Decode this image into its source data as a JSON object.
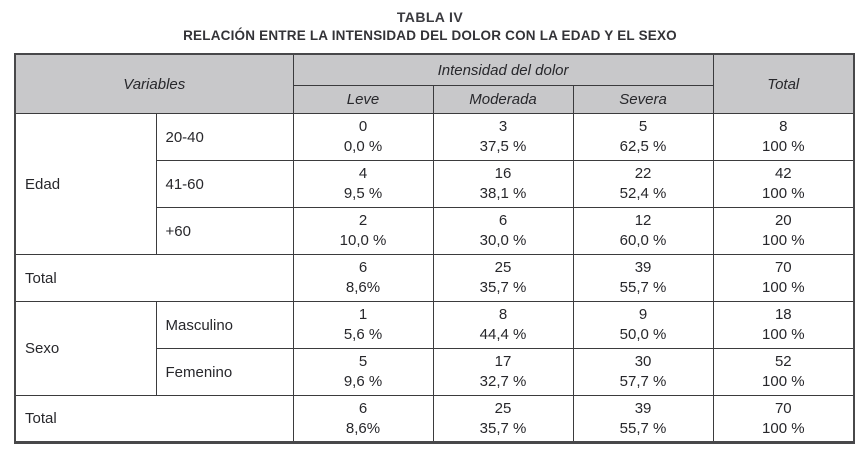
{
  "page": {
    "title": "TABLA IV",
    "subtitle": "RELACIÓN ENTRE LA INTENSIDAD DEL DOLOR CON LA EDAD Y EL SEXO"
  },
  "colors": {
    "header_bg": "#c8c8ca",
    "border": "#3b3b3d",
    "text": "#27272b"
  },
  "header": {
    "variables": "Variables",
    "intensity_group": "Intensidad del dolor",
    "leve": "Leve",
    "moderada": "Moderada",
    "severa": "Severa",
    "total": "Total"
  },
  "body": {
    "edad_label": "Edad",
    "sexo_label": "Sexo",
    "rows": [
      {
        "category": "20-40",
        "leve": {
          "n": "0",
          "pct": "0,0 %"
        },
        "moderada": {
          "n": "3",
          "pct": "37,5 %"
        },
        "severa": {
          "n": "5",
          "pct": "62,5 %"
        },
        "total": {
          "n": "8",
          "pct": "100 %"
        }
      },
      {
        "category": "41-60",
        "leve": {
          "n": "4",
          "pct": "9,5 %"
        },
        "moderada": {
          "n": "16",
          "pct": "38,1 %"
        },
        "severa": {
          "n": "22",
          "pct": "52,4 %"
        },
        "total": {
          "n": "42",
          "pct": "100 %"
        }
      },
      {
        "category": "+60",
        "leve": {
          "n": "2",
          "pct": "10,0 %"
        },
        "moderada": {
          "n": "6",
          "pct": "30,0 %"
        },
        "severa": {
          "n": "12",
          "pct": "60,0 %"
        },
        "total": {
          "n": "20",
          "pct": "100 %"
        }
      }
    ],
    "edad_total": {
      "label": "Total",
      "leve": {
        "n": "6",
        "pct": "8,6%"
      },
      "moderada": {
        "n": "25",
        "pct": "35,7 %"
      },
      "severa": {
        "n": "39",
        "pct": "55,7 %"
      },
      "total": {
        "n": "70",
        "pct": "100 %"
      }
    },
    "sexo_rows": [
      {
        "category": "Masculino",
        "leve": {
          "n": "1",
          "pct": "5,6 %"
        },
        "moderada": {
          "n": "8",
          "pct": "44,4 %"
        },
        "severa": {
          "n": "9",
          "pct": "50,0 %"
        },
        "total": {
          "n": "18",
          "pct": "100 %"
        }
      },
      {
        "category": "Femenino",
        "leve": {
          "n": "5",
          "pct": "9,6 %"
        },
        "moderada": {
          "n": "17",
          "pct": "32,7 %"
        },
        "severa": {
          "n": "30",
          "pct": "57,7 %"
        },
        "total": {
          "n": "52",
          "pct": "100 %"
        }
      }
    ],
    "sexo_total": {
      "label": "Total",
      "leve": {
        "n": "6",
        "pct": "8,6%"
      },
      "moderada": {
        "n": "25",
        "pct": "35,7 %"
      },
      "severa": {
        "n": "39",
        "pct": "55,7 %"
      },
      "total": {
        "n": "70",
        "pct": "100 %"
      }
    }
  },
  "chart_data": {
    "type": "table",
    "title": "TABLA IV",
    "subtitle": "RELACIÓN ENTRE LA INTENSIDAD DEL DOLOR CON LA EDAD Y EL SEXO",
    "columns": [
      "Variables",
      "",
      "Leve",
      "Moderada",
      "Severa",
      "Total"
    ],
    "column_group": {
      "label": "Intensidad del dolor",
      "spans": [
        "Leve",
        "Moderada",
        "Severa"
      ]
    },
    "rows": [
      [
        "Edad",
        "20-40",
        "0 | 0,0 %",
        "3 | 37,5 %",
        "5 | 62,5 %",
        "8 | 100 %"
      ],
      [
        "Edad",
        "41-60",
        "4 | 9,5 %",
        "16 | 38,1 %",
        "22 | 52,4 %",
        "42 | 100 %"
      ],
      [
        "Edad",
        "+60",
        "2 | 10,0 %",
        "6 | 30,0 %",
        "12 | 60,0 %",
        "20 | 100 %"
      ],
      [
        "Total",
        "",
        "6 | 8,6%",
        "25 | 35,7 %",
        "39 | 55,7 %",
        "70 | 100 %"
      ],
      [
        "Sexo",
        "Masculino",
        "1 | 5,6 %",
        "8 | 44,4 %",
        "9 | 50,0 %",
        "18 | 100 %"
      ],
      [
        "Sexo",
        "Femenino",
        "5 | 9,6 %",
        "17 | 32,7 %",
        "30 | 57,7 %",
        "52 | 100 %"
      ],
      [
        "Total",
        "",
        "6 | 8,6%",
        "25 | 35,7 %",
        "39 | 55,7 %",
        "70 | 100 %"
      ]
    ]
  }
}
